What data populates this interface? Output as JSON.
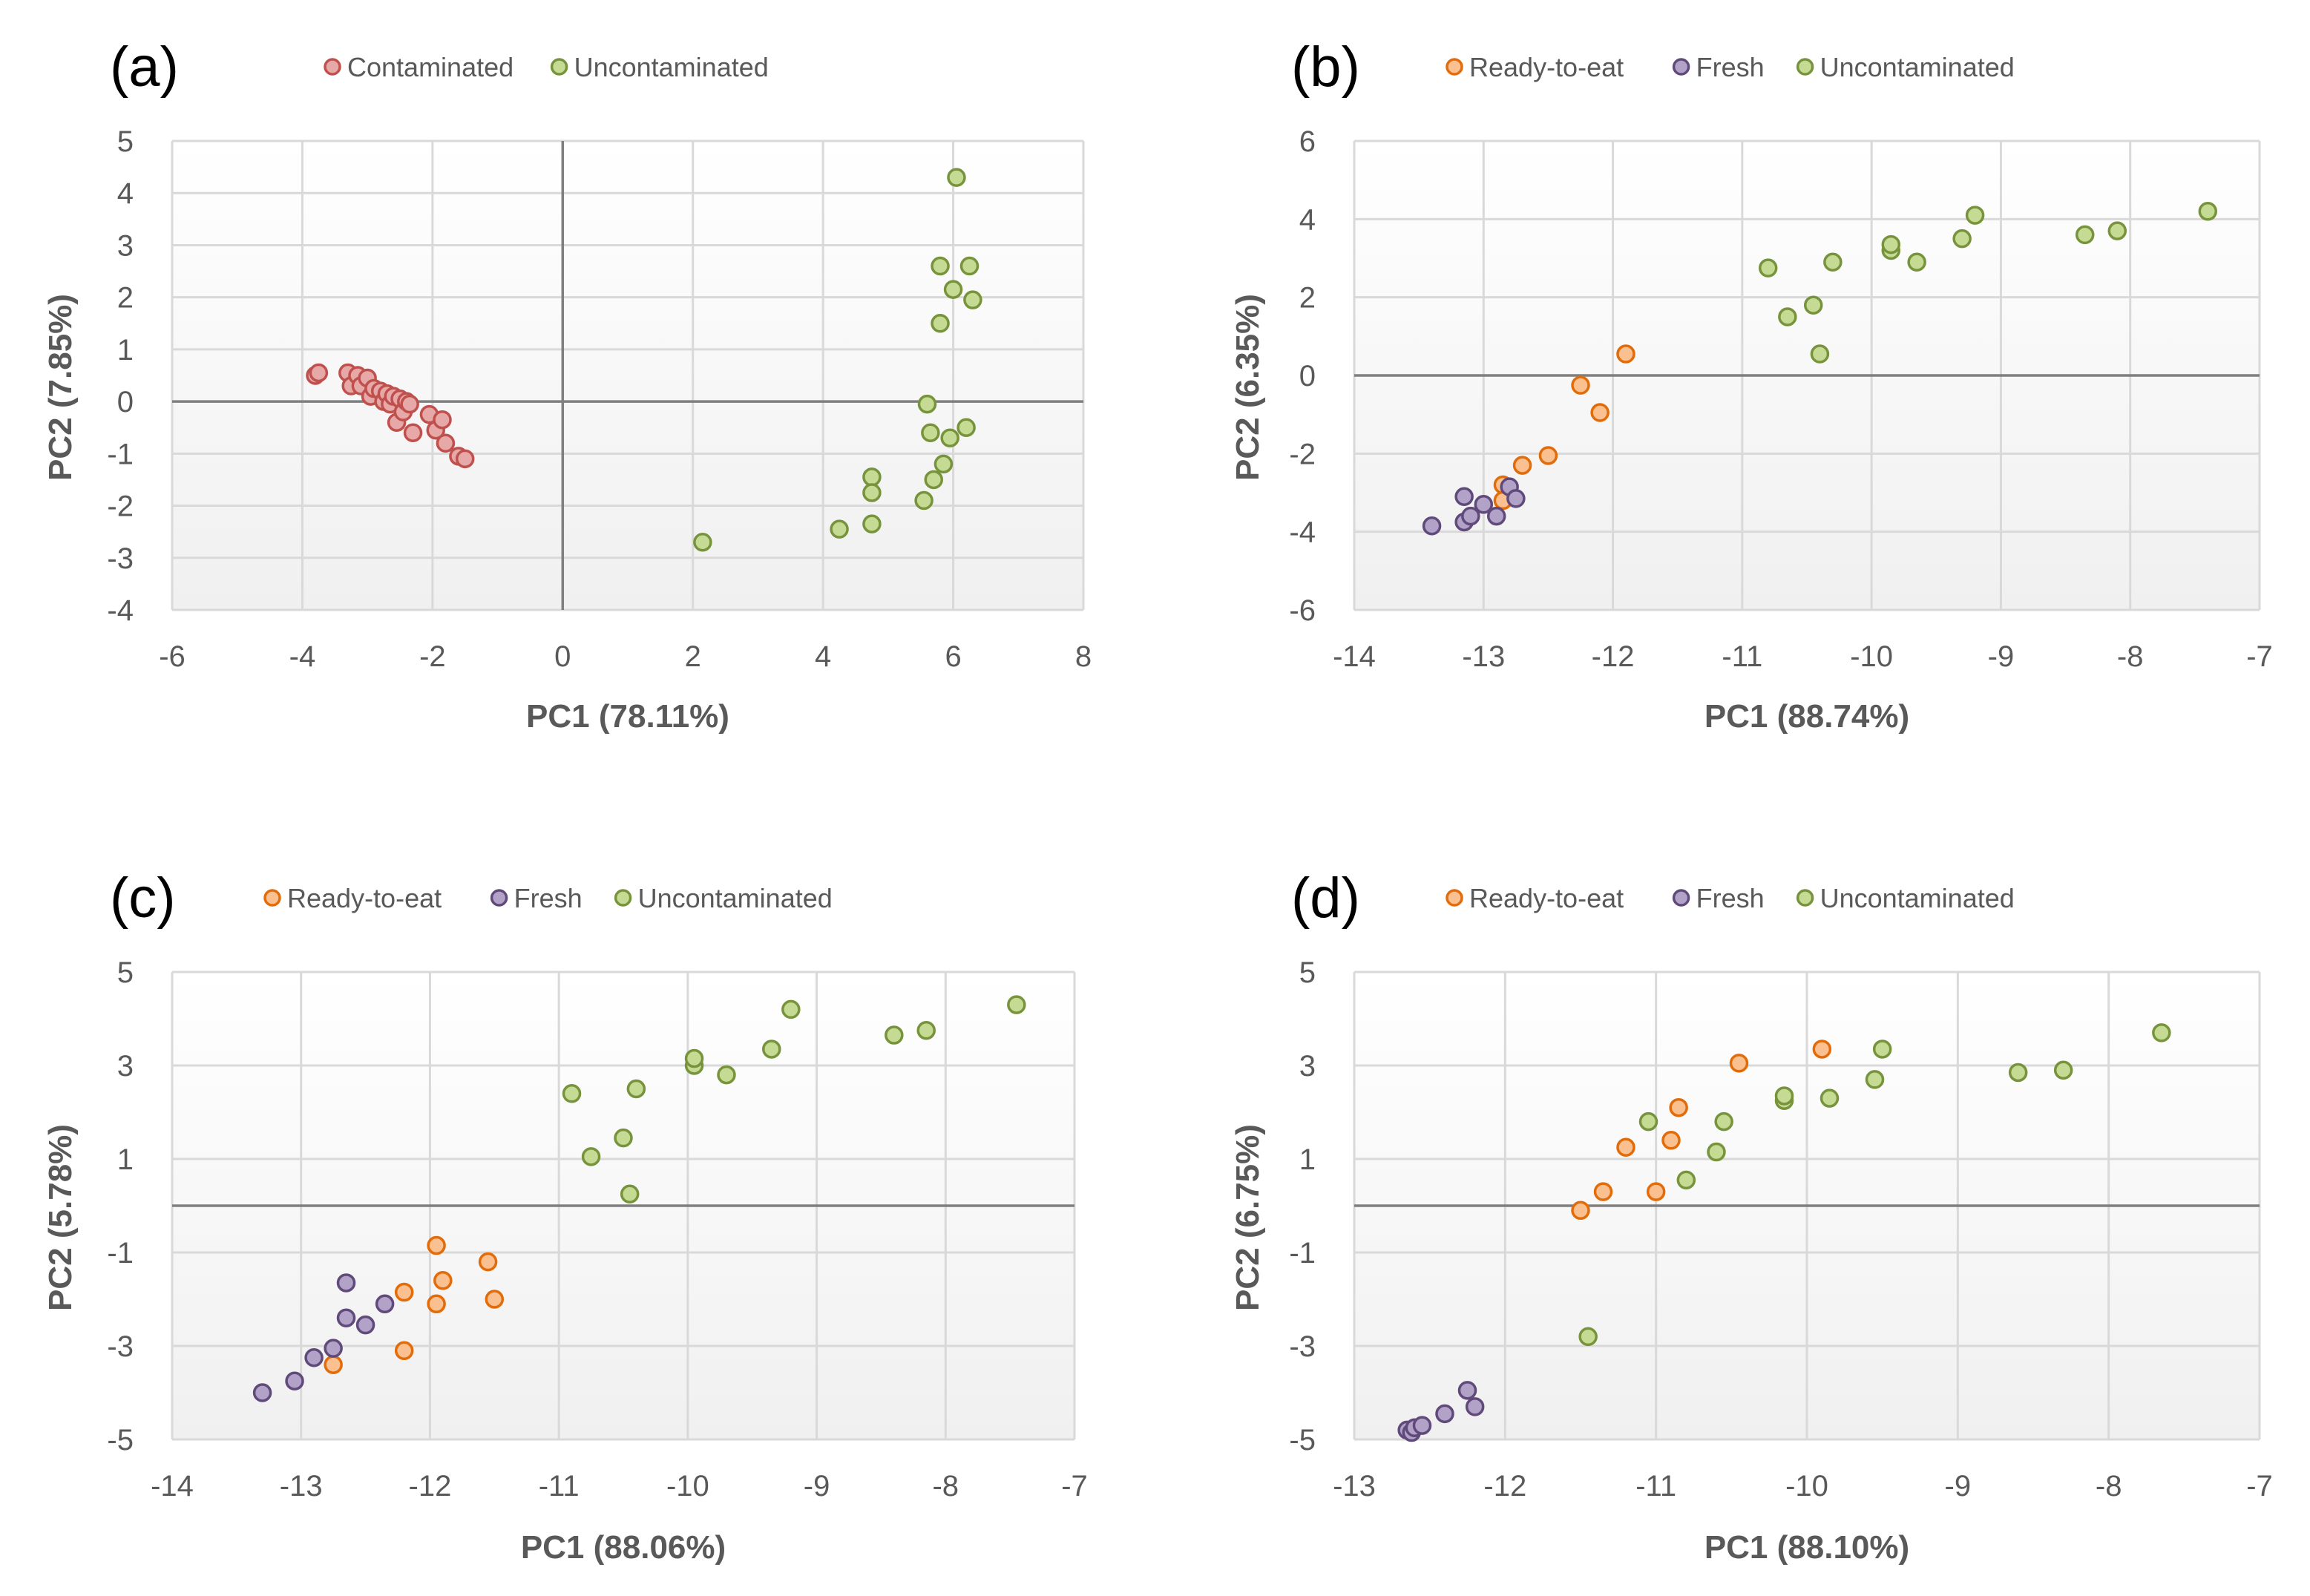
{
  "chart_data": [
    {
      "type": "scatter",
      "panel_label": "(a)",
      "xlabel": "PC1 (78.11%)",
      "ylabel": "PC2 (7.85%)",
      "xlim": [
        -6,
        8
      ],
      "ylim": [
        -4,
        5
      ],
      "xticks": [
        -6,
        -4,
        -2,
        0,
        2,
        4,
        6,
        8
      ],
      "yticks": [
        -4,
        -3,
        -2,
        -1,
        0,
        1,
        2,
        3,
        4,
        5
      ],
      "zero_lines": [
        "x",
        "y"
      ],
      "legend_position": "top",
      "series": [
        {
          "name": "Contaminated",
          "color": "#C0504D",
          "fill": "#E6A9A7",
          "points": [
            [
              -3.8,
              0.5
            ],
            [
              -3.75,
              0.55
            ],
            [
              -3.3,
              0.55
            ],
            [
              -3.25,
              0.3
            ],
            [
              -3.15,
              0.5
            ],
            [
              -3.1,
              0.3
            ],
            [
              -3.0,
              0.45
            ],
            [
              -2.95,
              0.1
            ],
            [
              -2.9,
              0.25
            ],
            [
              -2.8,
              0.2
            ],
            [
              -2.75,
              0.0
            ],
            [
              -2.7,
              0.15
            ],
            [
              -2.65,
              -0.05
            ],
            [
              -2.6,
              0.1
            ],
            [
              -2.55,
              -0.4
            ],
            [
              -2.5,
              0.05
            ],
            [
              -2.45,
              -0.2
            ],
            [
              -2.4,
              0.0
            ],
            [
              -2.35,
              -0.05
            ],
            [
              -2.3,
              -0.6
            ],
            [
              -2.05,
              -0.25
            ],
            [
              -1.95,
              -0.55
            ],
            [
              -1.85,
              -0.35
            ],
            [
              -1.8,
              -0.8
            ],
            [
              -1.6,
              -1.05
            ],
            [
              -1.5,
              -1.1
            ]
          ]
        },
        {
          "name": "Uncontaminated",
          "color": "#77933C",
          "fill": "#C5DB94",
          "points": [
            [
              2.15,
              -2.7
            ],
            [
              4.25,
              -2.45
            ],
            [
              4.75,
              -2.35
            ],
            [
              4.75,
              -1.45
            ],
            [
              4.75,
              -1.75
            ],
            [
              5.55,
              -1.9
            ],
            [
              5.6,
              -0.05
            ],
            [
              5.65,
              -0.6
            ],
            [
              5.7,
              -1.5
            ],
            [
              5.8,
              2.6
            ],
            [
              5.8,
              1.5
            ],
            [
              5.85,
              -1.2
            ],
            [
              5.95,
              -0.7
            ],
            [
              6.0,
              2.15
            ],
            [
              6.05,
              4.3
            ],
            [
              6.2,
              -0.5
            ],
            [
              6.25,
              2.6
            ],
            [
              6.3,
              1.95
            ]
          ]
        }
      ]
    },
    {
      "type": "scatter",
      "panel_label": "(b)",
      "xlabel": "PC1 (88.74%)",
      "ylabel": "PC2 (6.35%)",
      "xlim": [
        -14,
        -7
      ],
      "ylim": [
        -6,
        6
      ],
      "xticks": [
        -14,
        -13,
        -12,
        -11,
        -10,
        -9,
        -8,
        -7
      ],
      "yticks": [
        -6,
        -4,
        -2,
        0,
        2,
        4,
        6
      ],
      "zero_lines": [
        "y"
      ],
      "legend_position": "top",
      "series": [
        {
          "name": "Ready-to-eat",
          "color": "#E26B0A",
          "fill": "#FAC090",
          "points": [
            [
              -12.85,
              -2.8
            ],
            [
              -12.85,
              -3.2
            ],
            [
              -12.7,
              -2.3
            ],
            [
              -12.5,
              -2.05
            ],
            [
              -12.25,
              -0.25
            ],
            [
              -12.1,
              -0.95
            ],
            [
              -11.9,
              0.55
            ]
          ]
        },
        {
          "name": "Fresh",
          "color": "#604A7B",
          "fill": "#B3A2C7",
          "points": [
            [
              -13.4,
              -3.85
            ],
            [
              -13.15,
              -3.1
            ],
            [
              -13.15,
              -3.75
            ],
            [
              -13.1,
              -3.6
            ],
            [
              -13.0,
              -3.3
            ],
            [
              -12.9,
              -3.6
            ],
            [
              -12.8,
              -2.85
            ],
            [
              -12.75,
              -3.15
            ]
          ]
        },
        {
          "name": "Uncontaminated",
          "color": "#77933C",
          "fill": "#C5DB94",
          "points": [
            [
              -10.8,
              2.75
            ],
            [
              -10.65,
              1.5
            ],
            [
              -10.45,
              1.8
            ],
            [
              -10.4,
              0.55
            ],
            [
              -10.3,
              2.9
            ],
            [
              -9.85,
              3.2
            ],
            [
              -9.85,
              3.35
            ],
            [
              -9.65,
              2.9
            ],
            [
              -9.3,
              3.5
            ],
            [
              -9.2,
              4.1
            ],
            [
              -8.35,
              3.6
            ],
            [
              -8.1,
              3.7
            ],
            [
              -7.4,
              4.2
            ]
          ]
        }
      ]
    },
    {
      "type": "scatter",
      "panel_label": "(c)",
      "xlabel": "PC1 (88.06%)",
      "ylabel": "PC2 (5.78%)",
      "xlim": [
        -14,
        -7
      ],
      "ylim": [
        -5,
        5
      ],
      "xticks": [
        -14,
        -13,
        -12,
        -11,
        -10,
        -9,
        -8,
        -7
      ],
      "yticks": [
        -5,
        -3,
        -1,
        1,
        3,
        5
      ],
      "zero_lines": [
        "y"
      ],
      "legend_position": "top",
      "series": [
        {
          "name": "Ready-to-eat",
          "color": "#E26B0A",
          "fill": "#FAC090",
          "points": [
            [
              -12.75,
              -3.4
            ],
            [
              -12.2,
              -1.85
            ],
            [
              -12.2,
              -3.1
            ],
            [
              -11.95,
              -0.85
            ],
            [
              -11.95,
              -2.1
            ],
            [
              -11.9,
              -1.6
            ],
            [
              -11.55,
              -1.2
            ],
            [
              -11.5,
              -2.0
            ]
          ]
        },
        {
          "name": "Fresh",
          "color": "#604A7B",
          "fill": "#B3A2C7",
          "points": [
            [
              -13.3,
              -4.0
            ],
            [
              -13.05,
              -3.75
            ],
            [
              -12.9,
              -3.25
            ],
            [
              -12.75,
              -3.05
            ],
            [
              -12.65,
              -1.65
            ],
            [
              -12.65,
              -2.4
            ],
            [
              -12.5,
              -2.55
            ],
            [
              -12.35,
              -2.1
            ]
          ]
        },
        {
          "name": "Uncontaminated",
          "color": "#77933C",
          "fill": "#C5DB94",
          "points": [
            [
              -10.9,
              2.4
            ],
            [
              -10.75,
              1.05
            ],
            [
              -10.5,
              1.45
            ],
            [
              -10.45,
              0.25
            ],
            [
              -10.4,
              2.5
            ],
            [
              -9.95,
              3.0
            ],
            [
              -9.95,
              3.15
            ],
            [
              -9.7,
              2.8
            ],
            [
              -9.35,
              3.35
            ],
            [
              -9.2,
              4.2
            ],
            [
              -8.4,
              3.65
            ],
            [
              -8.15,
              3.75
            ],
            [
              -7.45,
              4.3
            ]
          ]
        }
      ]
    },
    {
      "type": "scatter",
      "panel_label": "(d)",
      "xlabel": "PC1 (88.10%)",
      "ylabel": "PC2 (6.75%)",
      "xlim": [
        -13,
        -7
      ],
      "ylim": [
        -5,
        5
      ],
      "xticks": [
        -13,
        -12,
        -11,
        -10,
        -9,
        -8,
        -7
      ],
      "yticks": [
        -5,
        -3,
        -1,
        1,
        3,
        5
      ],
      "zero_lines": [
        "y"
      ],
      "legend_position": "top",
      "series": [
        {
          "name": "Ready-to-eat",
          "color": "#E26B0A",
          "fill": "#FAC090",
          "points": [
            [
              -11.5,
              -0.1
            ],
            [
              -11.35,
              0.3
            ],
            [
              -11.2,
              1.25
            ],
            [
              -11.0,
              0.3
            ],
            [
              -10.9,
              1.4
            ],
            [
              -10.85,
              2.1
            ],
            [
              -10.45,
              3.05
            ],
            [
              -9.9,
              3.35
            ]
          ]
        },
        {
          "name": "Fresh",
          "color": "#604A7B",
          "fill": "#B3A2C7",
          "points": [
            [
              -12.65,
              -4.8
            ],
            [
              -12.62,
              -4.85
            ],
            [
              -12.6,
              -4.75
            ],
            [
              -12.55,
              -4.7
            ],
            [
              -12.4,
              -4.45
            ],
            [
              -12.25,
              -3.95
            ],
            [
              -12.2,
              -4.3
            ]
          ]
        },
        {
          "name": "Uncontaminated",
          "color": "#77933C",
          "fill": "#C5DB94",
          "points": [
            [
              -11.45,
              -2.8
            ],
            [
              -11.05,
              1.8
            ],
            [
              -10.8,
              0.55
            ],
            [
              -10.6,
              1.15
            ],
            [
              -10.55,
              1.8
            ],
            [
              -10.15,
              2.25
            ],
            [
              -10.15,
              2.35
            ],
            [
              -9.85,
              2.3
            ],
            [
              -9.55,
              2.7
            ],
            [
              -9.5,
              3.35
            ],
            [
              -8.6,
              2.85
            ],
            [
              -8.3,
              2.9
            ],
            [
              -7.65,
              3.7
            ]
          ]
        }
      ]
    }
  ]
}
